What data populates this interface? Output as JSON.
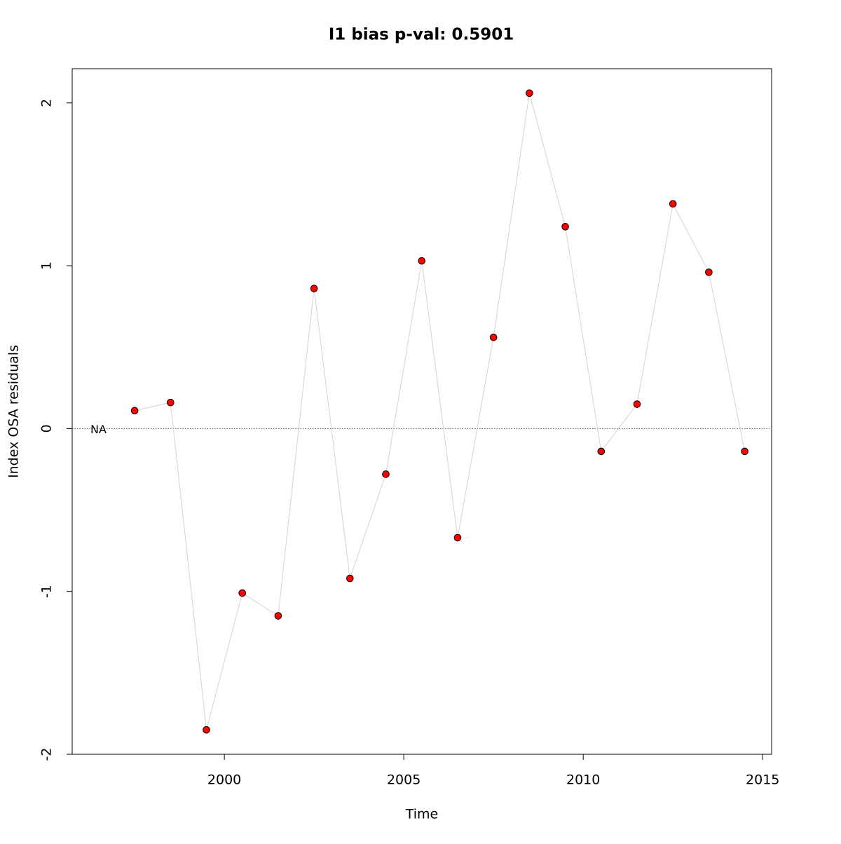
{
  "chart_data": {
    "type": "line",
    "title": "I1 bias p-val: 0.5901",
    "title_color": "#228b22",
    "x_label": "Time",
    "y_label": "Index OSA residuals",
    "annotation": "NA",
    "hline": 0,
    "x": [
      1997.5,
      1998.5,
      1999.5,
      2000.5,
      2001.5,
      2002.5,
      2003.5,
      2004.5,
      2005.5,
      2006.5,
      2007.5,
      2008.5,
      2009.5,
      2010.5,
      2011.5,
      2012.5,
      2013.5,
      2014.5
    ],
    "series": [
      {
        "color": "#ff0000",
        "line_color": "#d3d3d3",
        "values": [
          0.11,
          0.16,
          -1.85,
          -1.01,
          -1.15,
          0.86,
          -0.92,
          -0.28,
          1.03,
          -0.67,
          0.56,
          2.06,
          1.24,
          -0.14,
          0.15,
          1.38,
          0.96,
          -0.14
        ]
      }
    ],
    "xlim": [
      1995.76,
      2015.25
    ],
    "ylim": [
      -2.0,
      2.21
    ],
    "xticks": [
      2000,
      2005,
      2010,
      2015
    ],
    "yticks": [
      -2,
      -1,
      0,
      1,
      2
    ]
  }
}
